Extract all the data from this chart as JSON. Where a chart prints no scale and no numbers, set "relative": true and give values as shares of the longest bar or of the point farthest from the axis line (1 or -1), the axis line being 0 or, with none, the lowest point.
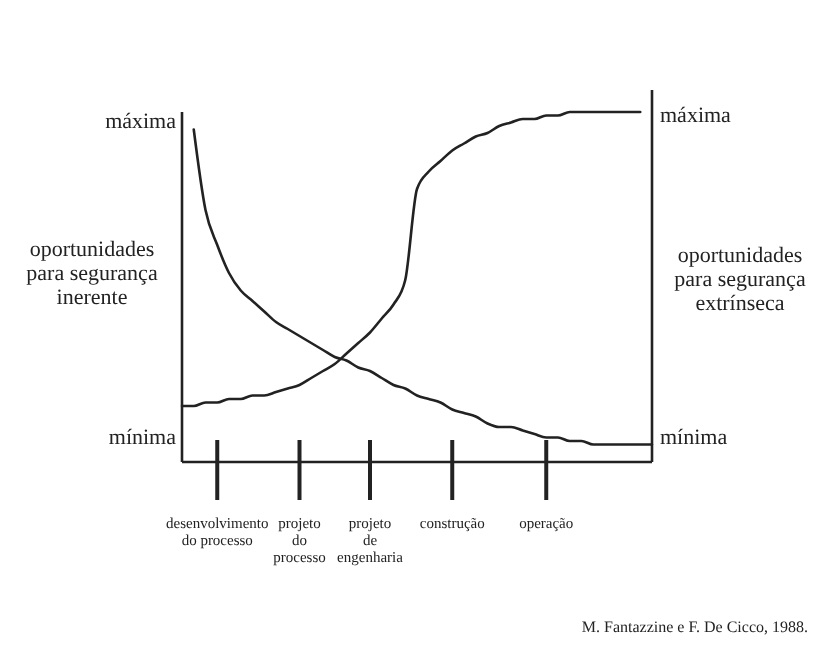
{
  "chart_data": {
    "type": "line",
    "relative": true,
    "ylabel": "oportunidades\npara segurança\ninerente",
    "y2label": "oportunidades\npara segurança\nextrínseca",
    "categories": [
      null,
      null,
      null,
      "desenvolvimento\ndo processo",
      null,
      null,
      null,
      null,
      null,
      null,
      "projeto\ndo\nprocesso",
      null,
      null,
      null,
      null,
      null,
      "projeto\nde\nengenharia",
      null,
      null,
      null,
      null,
      null,
      null,
      "construção",
      null,
      null,
      null,
      null,
      null,
      null,
      null,
      "operação",
      null,
      null,
      null,
      null,
      null,
      null,
      null,
      null,
      null
    ],
    "series": [
      {
        "color": "#222222",
        "values": [
          null,
          0.95,
          0.72,
          0.62,
          0.54,
          0.49,
          0.46,
          0.43,
          0.4,
          0.38,
          0.36,
          0.34,
          0.32,
          0.3,
          0.29,
          0.27,
          0.26,
          0.24,
          0.22,
          0.21,
          0.19,
          0.18,
          0.17,
          0.15,
          0.14,
          0.13,
          0.11,
          0.1,
          0.1,
          0.09,
          0.08,
          0.07,
          0.07,
          0.06,
          0.06,
          0.05,
          0.05,
          0.05,
          0.05,
          0.05,
          0.05
        ]
      },
      {
        "color": "#222222",
        "values": [
          0.16,
          0.16,
          0.17,
          0.17,
          0.18,
          0.18,
          0.19,
          0.19,
          0.2,
          0.21,
          0.22,
          0.24,
          0.26,
          0.28,
          0.31,
          0.34,
          0.37,
          0.41,
          0.45,
          0.52,
          0.78,
          0.83,
          0.86,
          0.89,
          0.91,
          0.93,
          0.94,
          0.96,
          0.97,
          0.98,
          0.98,
          0.99,
          0.99,
          1,
          1,
          1,
          1,
          1,
          1,
          1,
          null
        ]
      }
    ],
    "line_style": "solid",
    "annotations": [
      "máxima",
      "mínima",
      "máxima",
      "mínima",
      "M. Fantazzine e F. De Cicco, 1988."
    ]
  }
}
